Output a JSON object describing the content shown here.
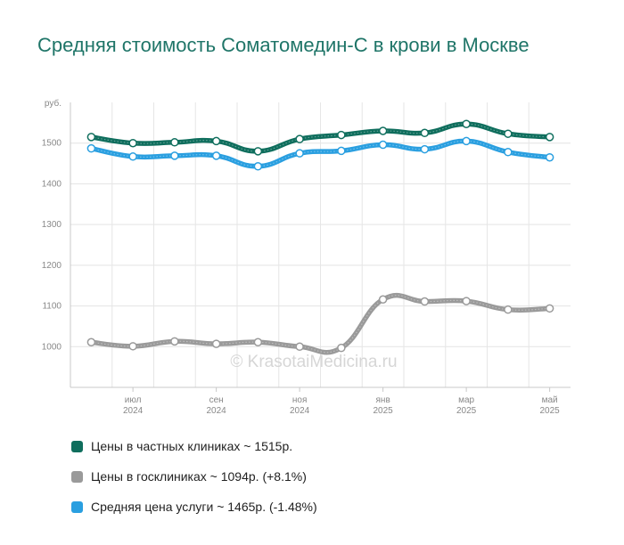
{
  "title": "Средняя стоимость Соматомедин-С в крови в Москве",
  "watermark": "© KrasotaiMedicina.ru",
  "legend": [
    {
      "text": "Цены в частных клиниках ~ 1515р.",
      "color": "#0f6e5d"
    },
    {
      "text": "Цены в госклиниках ~ 1094р. (+8.1%)",
      "color": "#9a9a9a"
    },
    {
      "text": "Средняя цена услуги ~ 1465р. (-1.48%)",
      "color": "#2a9fe0"
    }
  ],
  "chart_data": {
    "type": "line",
    "title": "Средняя стоимость Соматомедин-С в крови в Москве",
    "ylabel": "руб.",
    "ylim": [
      900,
      1600
    ],
    "yticks": [
      "1000",
      "1100",
      "1200",
      "1300",
      "1400",
      "1500"
    ],
    "xlim": [
      -0.5,
      11.5
    ],
    "x": [
      0,
      1,
      2,
      3,
      4,
      5,
      6,
      7,
      8,
      9,
      10,
      11
    ],
    "xticks": [
      {
        "at": 1,
        "month": "июл",
        "year": "2024"
      },
      {
        "at": 3,
        "month": "сен",
        "year": "2024"
      },
      {
        "at": 5,
        "month": "ноя",
        "year": "2024"
      },
      {
        "at": 7,
        "month": "янв",
        "year": "2025"
      },
      {
        "at": 9,
        "month": "мар",
        "year": "2025"
      },
      {
        "at": 11,
        "month": "май",
        "year": "2025"
      }
    ],
    "grid": true,
    "series": [
      {
        "name": "Цены в частных клиниках ~ 1515р.",
        "color": "#0f6e5d",
        "values": [
          1515,
          1500,
          1502,
          1505,
          1480,
          1510,
          1520,
          1530,
          1525,
          1547,
          1523,
          1515
        ]
      },
      {
        "name": "Цены в госклиниках ~ 1094р. (+8.1%)",
        "color": "#9a9a9a",
        "values": [
          1011,
          1001,
          1013,
          1007,
          1011,
          1000,
          997,
          1116,
          1111,
          1112,
          1091,
          1094
        ]
      },
      {
        "name": "Средняя цена услуги ~ 1465р. (-1.48%)",
        "color": "#2a9fe0",
        "values": [
          1487,
          1467,
          1469,
          1469,
          1443,
          1475,
          1481,
          1496,
          1485,
          1505,
          1478,
          1465
        ]
      }
    ]
  }
}
